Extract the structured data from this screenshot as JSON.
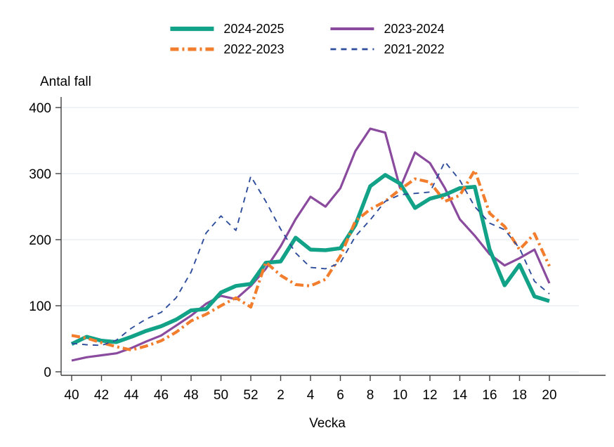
{
  "chart_data": {
    "type": "line",
    "title": "Antal fall",
    "xlabel": "Vecka",
    "ylabel": "Antal fall",
    "ylim": [
      0,
      400
    ],
    "yticks": [
      0,
      100,
      200,
      300,
      400
    ],
    "grid": "horizontal",
    "legend_position": "top-center",
    "x_tick_every": 2,
    "weeks": [
      "40",
      "41",
      "42",
      "43",
      "44",
      "45",
      "46",
      "47",
      "48",
      "49",
      "50",
      "51",
      "52",
      "1",
      "2",
      "3",
      "4",
      "5",
      "6",
      "7",
      "8",
      "9",
      "10",
      "11",
      "12",
      "13",
      "14",
      "15",
      "16",
      "17",
      "18",
      "19",
      "20"
    ],
    "series": [
      {
        "name": "2024-2025",
        "color": "#12a288",
        "style": "solid",
        "width": 5.5,
        "values": [
          42,
          53,
          47,
          45,
          53,
          62,
          69,
          79,
          93,
          95,
          120,
          130,
          133,
          165,
          167,
          203,
          185,
          184,
          187,
          222,
          281,
          298,
          285,
          248,
          262,
          268,
          278,
          280,
          185,
          131,
          162,
          114,
          107
        ]
      },
      {
        "name": "2023-2024",
        "color": "#8a4a9e",
        "style": "solid",
        "width": 3.2,
        "values": [
          17,
          22,
          25,
          28,
          36,
          46,
          55,
          70,
          85,
          103,
          115,
          110,
          130,
          156,
          190,
          231,
          265,
          250,
          278,
          334,
          368,
          362,
          278,
          332,
          316,
          278,
          231,
          206,
          178,
          161,
          172,
          185,
          134
        ]
      },
      {
        "name": "2022-2023",
        "color": "#f17d2d",
        "style": "dash-dot",
        "width": 4.2,
        "values": [
          55,
          51,
          44,
          38,
          33,
          39,
          47,
          60,
          77,
          87,
          100,
          112,
          98,
          166,
          146,
          132,
          130,
          140,
          175,
          228,
          246,
          258,
          276,
          292,
          287,
          258,
          267,
          305,
          240,
          220,
          185,
          209,
          160
        ]
      },
      {
        "name": "2021-2022",
        "color": "#2e4d9c",
        "style": "dashed",
        "width": 1.9,
        "values": [
          43,
          41,
          40,
          48,
          66,
          80,
          90,
          112,
          151,
          210,
          236,
          214,
          296,
          258,
          216,
          180,
          158,
          156,
          165,
          205,
          230,
          258,
          268,
          270,
          272,
          318,
          290,
          250,
          225,
          215,
          187,
          137,
          118
        ]
      }
    ]
  }
}
